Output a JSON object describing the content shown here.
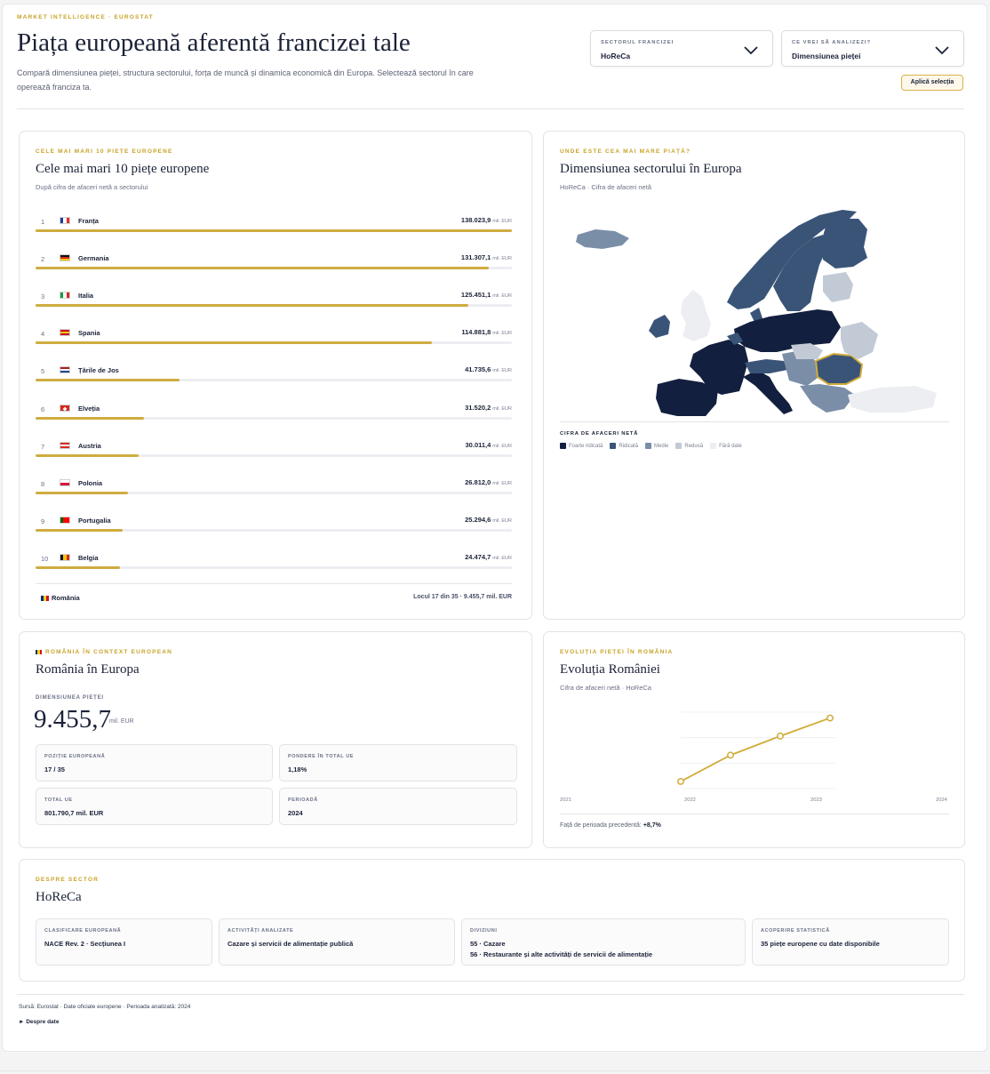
{
  "header": {
    "eyebrow": "MARKET INTELLIGENCE · EUROSTAT",
    "title": "Piața europeană aferentă francizei tale",
    "description": "Compară dimensiunea pieței, structura sectorului, forța de muncă și dinamica economică din Europa. Selectează sectorul în care operează franciza ta.",
    "sector_select": {
      "label": "SECTORUL FRANCIZEI",
      "value": "HoReCa"
    },
    "analysis_select": {
      "label": "CE VREI SĂ ANALIZEZI?",
      "value": "Dimensiunea pieței"
    },
    "apply_label": "Aplică selecția"
  },
  "top10": {
    "eyebrow": "CELE MAI MARI 10 PIEȚE EUROPENE",
    "title": "Cele mai mari 10 piețe europene",
    "subtitle": "După cifra de afaceri netă a sectorului",
    "unit": "mil. EUR",
    "rows": [
      {
        "rank": "1",
        "name": "Franța",
        "value": "138.023,9",
        "share": 1.0,
        "flag": [
          "#1f3d9b",
          "#ffffff",
          "#e0302e"
        ],
        "dir": "v"
      },
      {
        "rank": "2",
        "name": "Germania",
        "value": "131.307,1",
        "share": 0.951,
        "flag": [
          "#111111",
          "#d52b1e",
          "#f2c500"
        ],
        "dir": "h"
      },
      {
        "rank": "3",
        "name": "Italia",
        "value": "125.451,1",
        "share": 0.909,
        "flag": [
          "#169b47",
          "#ffffff",
          "#d52b1e"
        ],
        "dir": "v"
      },
      {
        "rank": "4",
        "name": "Spania",
        "value": "114.881,8",
        "share": 0.832,
        "flag": [
          "#c8102e",
          "#f6c400",
          "#c8102e"
        ],
        "dir": "h"
      },
      {
        "rank": "5",
        "name": "Țările de Jos",
        "value": "41.735,6",
        "share": 0.302,
        "flag": [
          "#ae1c28",
          "#ffffff",
          "#21468b"
        ],
        "dir": "h"
      },
      {
        "rank": "6",
        "name": "Elveția",
        "value": "31.520,2",
        "share": 0.228,
        "flag": [
          "#d52b1e"
        ],
        "dir": "ch"
      },
      {
        "rank": "7",
        "name": "Austria",
        "value": "30.011,4",
        "share": 0.217,
        "flag": [
          "#d52b1e",
          "#ffffff",
          "#d52b1e"
        ],
        "dir": "h"
      },
      {
        "rank": "8",
        "name": "Polonia",
        "value": "26.812,0",
        "share": 0.194,
        "flag": [
          "#ffffff",
          "#dc143c"
        ],
        "dir": "h"
      },
      {
        "rank": "9",
        "name": "Portugalia",
        "value": "25.294,6",
        "share": 0.183,
        "flag": [
          "#006600",
          "#ff0000",
          "#ff0000"
        ],
        "dir": "v"
      },
      {
        "rank": "10",
        "name": "Belgia",
        "value": "24.474,7",
        "share": 0.177,
        "flag": [
          "#111111",
          "#f6c400",
          "#d52b1e"
        ],
        "dir": "v"
      }
    ],
    "romania": {
      "name": "România",
      "rank_text": "Locul 17 din 35 · 9.455,7 mil. EUR"
    }
  },
  "map": {
    "eyebrow": "UNDE ESTE CEA MAI MARE PIAȚĂ?",
    "title": "Dimensiunea sectorului în Europa",
    "subtitle": "HoReCa · Cifra de afaceri netă",
    "legend_title": "CIFRA DE AFACERI NETĂ",
    "legend": [
      {
        "label": "Foarte ridicată",
        "color": "#131f3e"
      },
      {
        "label": "Ridicată",
        "color": "#3a5478"
      },
      {
        "label": "Medie",
        "color": "#7b8ea8"
      },
      {
        "label": "Redusă",
        "color": "#c2cad6"
      },
      {
        "label": "Fără date",
        "color": "#eceef2"
      }
    ]
  },
  "romania_card": {
    "eyebrow": "ROMÂNIA ÎN CONTEXT EUROPEAN",
    "title": "România în Europa",
    "big_label": "DIMENSIUNEA PIEȚEI",
    "big_value": "9.455,7",
    "big_unit": "mil. EUR",
    "tiles": [
      {
        "label": "Poziție europeană",
        "value": "17 / 35"
      },
      {
        "label": "Pondere în total UE",
        "value": "1,18%"
      },
      {
        "label": "Total UE",
        "value": "801.790,7 mil. EUR"
      },
      {
        "label": "Perioadă",
        "value": "2024"
      }
    ]
  },
  "evolution": {
    "eyebrow": "EVOLUȚIA PIEȚEI ÎN ROMÂNIA",
    "title": "Evoluția României",
    "subtitle": "Cifra de afaceri netă · HoReCa",
    "delta_label": "Față de perioada precedentă:",
    "delta_value": "+8,7%"
  },
  "chart_data": {
    "type": "line",
    "x": [
      "2021",
      "2022",
      "2023",
      "2024"
    ],
    "series": [
      {
        "values": [
          6800,
          7900,
          8700,
          9455.7
        ]
      }
    ],
    "ylabel": "",
    "xlabel": "",
    "color": "#d1ac3a"
  },
  "sector": {
    "eyebrow": "DESPRE SECTOR",
    "title": "HoReCa",
    "tiles": [
      {
        "label": "Clasificare europeană",
        "lines": [
          "NACE Rev. 2 · Secțiunea I"
        ]
      },
      {
        "label": "Activități analizate",
        "lines": [
          "Cazare și servicii de alimentație publică"
        ]
      },
      {
        "label": "Diviziuni",
        "lines": [
          "55 · Cazare",
          "56 · Restaurante și alte activități de servicii de alimentație"
        ]
      },
      {
        "label": "Acoperire statistică",
        "lines": [
          "35 piețe europene cu date disponibile"
        ]
      }
    ]
  },
  "footer": {
    "source": "Sursă: Eurostat · Date oficiale europene · Perioada analizată: 2024",
    "about": "► Despre date"
  }
}
